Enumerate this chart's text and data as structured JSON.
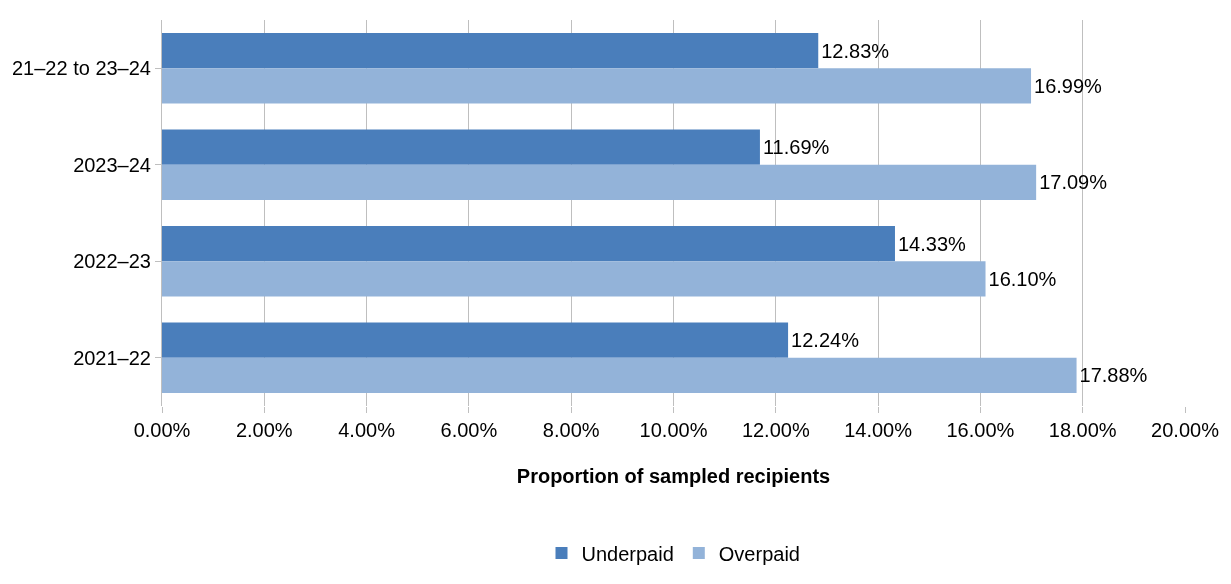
{
  "chart_data": {
    "type": "bar",
    "orientation": "horizontal",
    "xlabel": "Proportion of sampled recipients",
    "categories": [
      "21–22 to 23–24",
      "2023–24",
      "2022–23",
      "2021–22"
    ],
    "series": [
      {
        "name": "Underpaid",
        "color": "#4a7ebb",
        "values": [
          12.83,
          11.69,
          14.33,
          12.24
        ],
        "value_labels": [
          "12.83%",
          "11.69%",
          "14.33%",
          "12.24%"
        ]
      },
      {
        "name": "Overpaid",
        "color": "#93b3d9",
        "values": [
          16.99,
          17.09,
          16.1,
          17.88
        ],
        "value_labels": [
          "16.99%",
          "17.09%",
          "16.10%",
          "17.88%"
        ]
      }
    ],
    "xlim": [
      0,
      20
    ],
    "xticks": [
      {
        "value": 0,
        "label": "0.00%"
      },
      {
        "value": 2,
        "label": "2.00%"
      },
      {
        "value": 4,
        "label": "4.00%"
      },
      {
        "value": 6,
        "label": "6.00%"
      },
      {
        "value": 8,
        "label": "8.00%"
      },
      {
        "value": 10,
        "label": "10.00%"
      },
      {
        "value": 12,
        "label": "12.00%"
      },
      {
        "value": 14,
        "label": "14.00%"
      },
      {
        "value": 16,
        "label": "16.00%"
      },
      {
        "value": 18,
        "label": "18.00%"
      },
      {
        "value": 20,
        "label": "20.00%"
      }
    ],
    "grid": "x",
    "legend": "bottom"
  }
}
